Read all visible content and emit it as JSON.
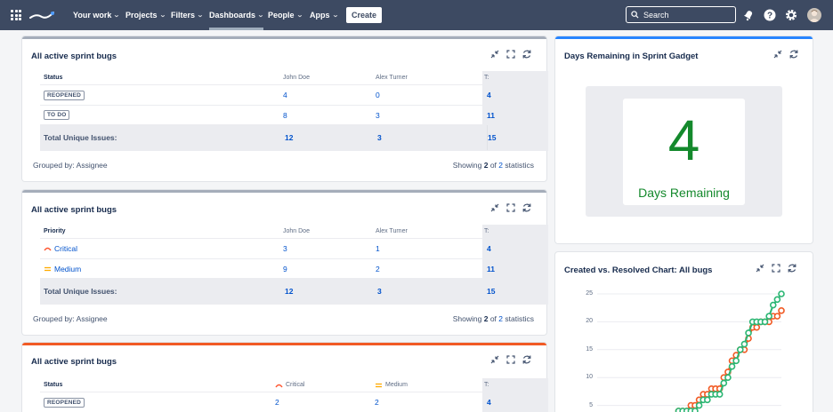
{
  "nav": {
    "items": [
      {
        "label": "Your work"
      },
      {
        "label": "Projects"
      },
      {
        "label": "Filters"
      },
      {
        "label": "Dashboards"
      },
      {
        "label": "People"
      },
      {
        "label": "Apps"
      }
    ],
    "create_label": "Create",
    "search_placeholder": "Search",
    "active_item": "Dashboards"
  },
  "gadgets": {
    "g1": {
      "title": "All active sprint bugs",
      "accent": "#a5adba",
      "headers": [
        "Status",
        "John Doe",
        "Alex Turner",
        "T:"
      ],
      "rows": [
        {
          "label": "REOPENED",
          "john": "4",
          "alex": "0",
          "total": "4"
        },
        {
          "label": "TO DO",
          "john": "8",
          "alex": "3",
          "total": "11"
        }
      ],
      "total_row": {
        "label": "Total Unique Issues:",
        "john": "12",
        "alex": "3",
        "total": "15"
      },
      "grouped_by": "Grouped by: Assignee",
      "showing": {
        "prefix": "Showing",
        "count": "2",
        "of": "of",
        "total": "2",
        "suffix": "statistics"
      }
    },
    "g2": {
      "title": "All active sprint bugs",
      "accent": "#a5adba",
      "headers": [
        "Priority",
        "John Doe",
        "Alex Turner",
        "T:"
      ],
      "rows": [
        {
          "label": "Critical",
          "icon": "priority-critical-icon",
          "john": "3",
          "alex": "1",
          "total": "4"
        },
        {
          "label": "Medium",
          "icon": "priority-medium-icon",
          "john": "9",
          "alex": "2",
          "total": "11"
        }
      ],
      "total_row": {
        "label": "Total Unique Issues:",
        "john": "12",
        "alex": "3",
        "total": "15"
      },
      "grouped_by": "Grouped by: Assignee",
      "showing": {
        "prefix": "Showing",
        "count": "2",
        "of": "of",
        "total": "2",
        "suffix": "statistics"
      }
    },
    "g3": {
      "title": "All active sprint bugs",
      "accent": "#f15a24",
      "headers": [
        "Status",
        "Critical",
        "Medium",
        "T:"
      ],
      "rows": [
        {
          "label": "REOPENED",
          "critical": "2",
          "medium": "2",
          "total": "4"
        }
      ]
    },
    "days": {
      "title": "Days Remaining in Sprint Gadget",
      "accent": "#2684ff",
      "value": "4",
      "label": "Days Remaining"
    },
    "chart": {
      "title": "Created vs. Resolved Chart: All bugs"
    }
  },
  "chart_data": {
    "type": "line",
    "title": "Created vs. Resolved Chart: All bugs",
    "yticks": [
      5,
      10,
      15,
      20,
      25
    ],
    "ylim": [
      3,
      26
    ],
    "x": [
      0,
      1,
      2,
      3,
      4,
      5,
      6,
      7,
      8,
      9,
      10,
      11,
      12,
      13,
      14,
      15,
      16,
      17,
      18,
      19,
      20,
      21,
      22,
      23,
      24,
      25,
      26,
      27,
      28,
      29
    ],
    "series": [
      {
        "color": "#f15a24",
        "values": [
          3,
          3,
          3,
          3,
          4,
          4,
          4,
          5,
          5,
          6,
          7,
          7,
          8,
          8,
          8,
          10,
          11,
          13,
          14,
          15,
          15,
          17,
          19,
          19,
          20,
          20,
          20,
          21,
          21,
          22
        ]
      },
      {
        "color": "#2bb673",
        "values": [
          3,
          3,
          3,
          3,
          4,
          4,
          4,
          4,
          4,
          5,
          6,
          6,
          7,
          7,
          7,
          9,
          10,
          12,
          13,
          15,
          16,
          18,
          20,
          20,
          20,
          20,
          21,
          23,
          24,
          25
        ]
      }
    ]
  },
  "colors": {
    "nav_bg": "#3d4a62",
    "link": "#0052cc",
    "green": "#14892c"
  }
}
